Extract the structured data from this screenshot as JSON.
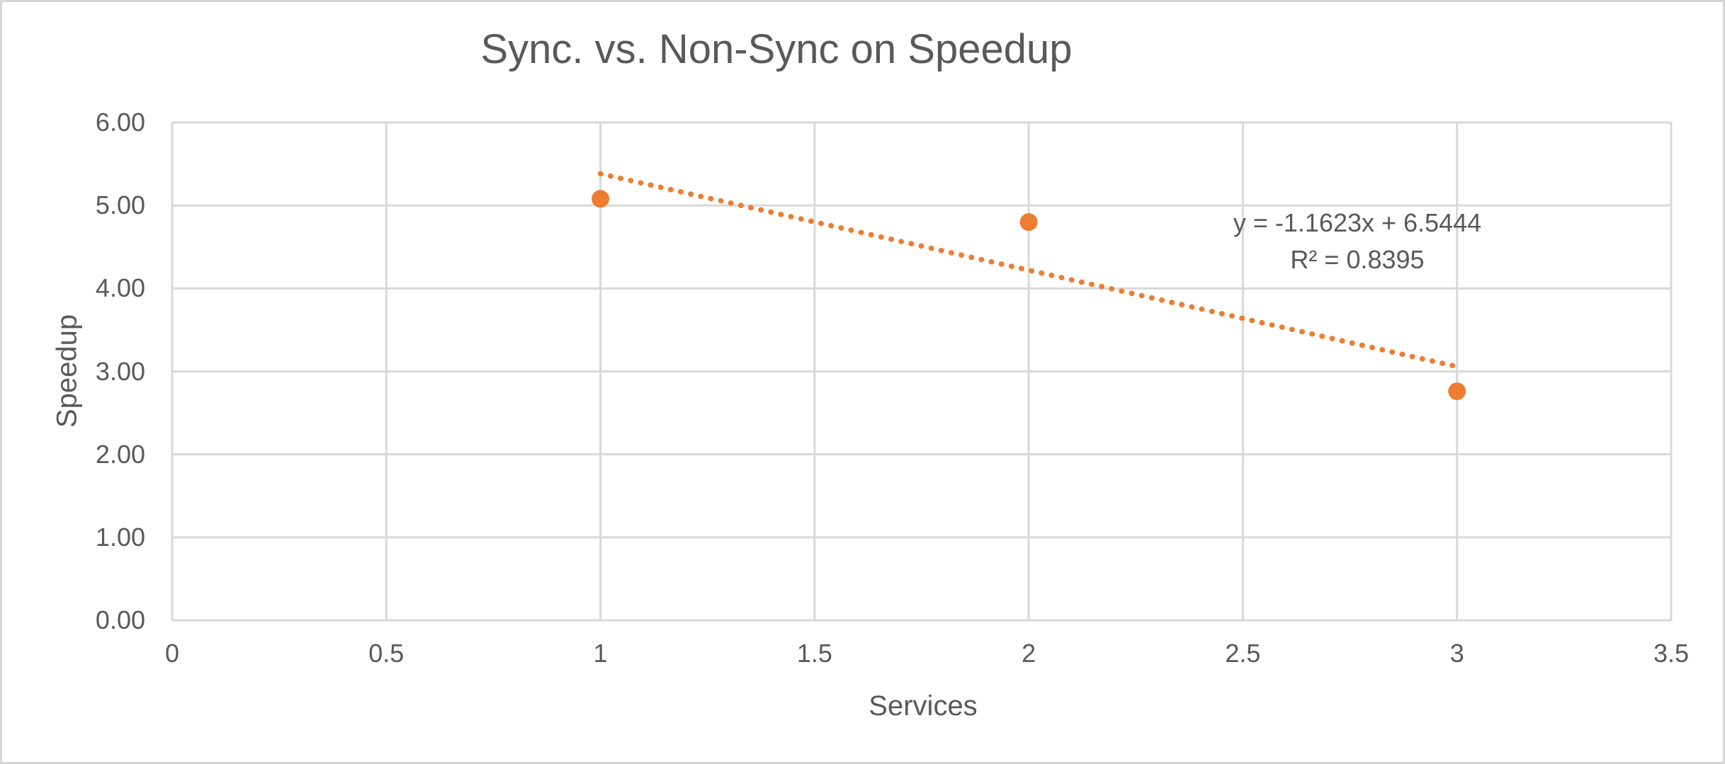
{
  "window": {
    "background_color": "#FFFFFF",
    "border_color": "#D6D6D6"
  },
  "chart_data": {
    "type": "scatter",
    "title": "Sync. vs. Non-Sync on Speedup",
    "xlabel": "Services",
    "ylabel": "Speedup",
    "x": [
      1,
      2,
      3
    ],
    "y": [
      5.08,
      4.8,
      2.76
    ],
    "xlim": [
      0,
      3.5
    ],
    "ylim": [
      0,
      6
    ],
    "x_tick_step": 0.5,
    "y_tick_step": 1,
    "x_tick_labels": [
      "0",
      "0.5",
      "1",
      "1.5",
      "2",
      "2.5",
      "3",
      "3.5"
    ],
    "y_tick_labels": [
      "0.00",
      "1.00",
      "2.00",
      "3.00",
      "4.00",
      "5.00",
      "6.00"
    ],
    "grid": true,
    "legend": "none",
    "marker_color": "#ED7D31",
    "gridline_color": "#D9D9D9",
    "text_color": "#595959",
    "trendline": {
      "type": "linear",
      "style": "dotted",
      "color": "#ED7D31",
      "slope": -1.1623,
      "intercept": 6.5444,
      "x_start": 1,
      "x_end": 3,
      "equation_label": "y = -1.1623x + 6.5444",
      "r2_label": "R² = 0.8395"
    }
  }
}
